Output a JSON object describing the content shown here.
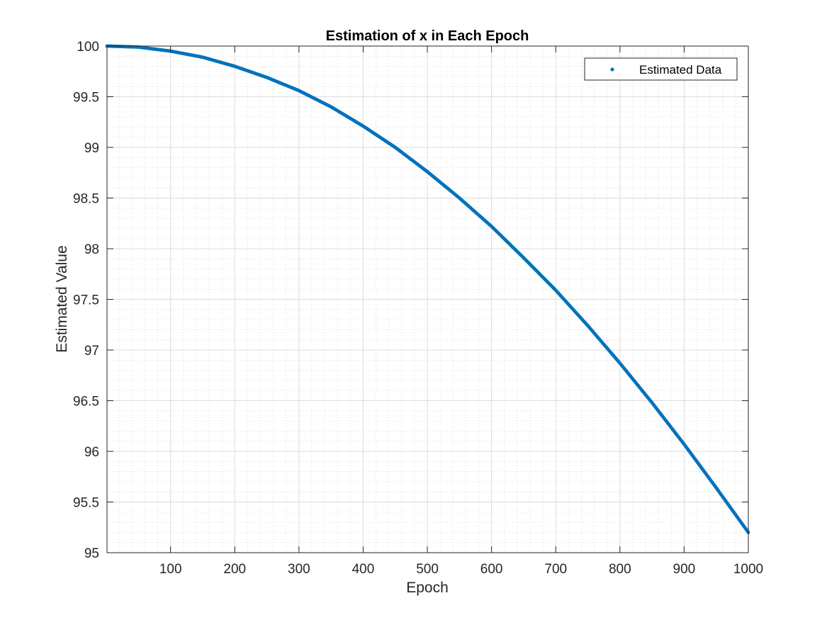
{
  "chart_data": {
    "type": "scatter",
    "title": "Estimation of x in Each Epoch",
    "xlabel": "Epoch",
    "ylabel": "Estimated Value",
    "xlim": [
      1,
      1000
    ],
    "ylim": [
      95,
      100
    ],
    "xticks": [
      100,
      200,
      300,
      400,
      500,
      600,
      700,
      800,
      900,
      1000
    ],
    "yticks": [
      95,
      95.5,
      96,
      96.5,
      97,
      97.5,
      98,
      98.5,
      99,
      99.5,
      100
    ],
    "xtick_labels": [
      "100",
      "200",
      "300",
      "400",
      "500",
      "600",
      "700",
      "800",
      "900",
      "1000"
    ],
    "ytick_labels": [
      "95",
      "95.5",
      "96",
      "96.5",
      "97",
      "97.5",
      "98",
      "98.5",
      "99",
      "99.5",
      "100"
    ],
    "grid": true,
    "minor_grid": true,
    "legend_position": "top-right",
    "marker": "point",
    "color": "#0072bd",
    "series": [
      {
        "name": "Estimated Data",
        "x": [
          1,
          50,
          100,
          150,
          200,
          250,
          300,
          350,
          400,
          450,
          500,
          550,
          600,
          650,
          700,
          750,
          800,
          850,
          900,
          950,
          1000
        ],
        "y": [
          100.0,
          99.99,
          99.95,
          99.89,
          99.8,
          99.69,
          99.56,
          99.4,
          99.21,
          99.0,
          98.76,
          98.5,
          98.22,
          97.91,
          97.59,
          97.24,
          96.87,
          96.48,
          96.07,
          95.64,
          95.2
        ]
      }
    ]
  }
}
